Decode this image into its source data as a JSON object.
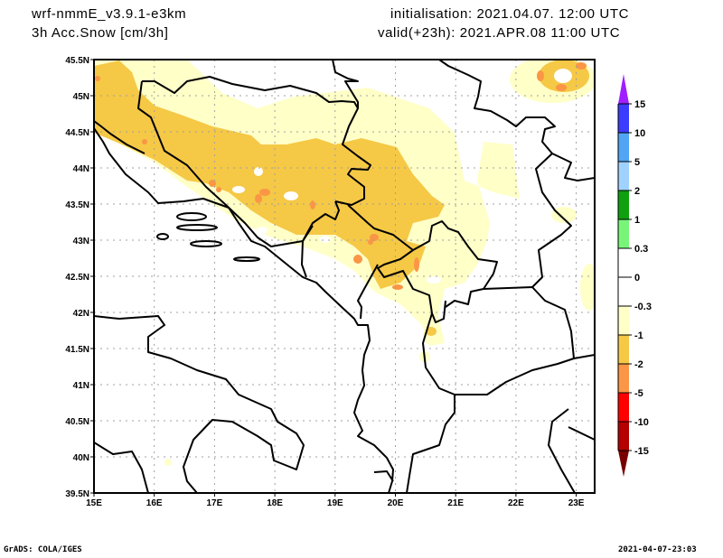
{
  "header": {
    "model": "wrf-nmmE_v3.9.1-e3km",
    "field": "3h Acc.Snow [cm/3h]",
    "init": "initialisation: 2021.04.07.  12:00 UTC",
    "valid": "valid(+23h): 2021.APR.08 11:00 UTC"
  },
  "map": {
    "lon_labels": [
      "15E",
      "16E",
      "17E",
      "18E",
      "19E",
      "20E",
      "21E",
      "22E",
      "23E"
    ],
    "lat_labels": [
      "45.5N",
      "45N",
      "44.5N",
      "44N",
      "43.5N",
      "43N",
      "42.5N",
      "42N",
      "41.5N",
      "41N",
      "40.5N",
      "40N",
      "39.5N"
    ],
    "lon_range": [
      15,
      23.3
    ],
    "lat_range": [
      39.5,
      45.5
    ]
  },
  "colorbar": {
    "labels": [
      "15",
      "10",
      "5",
      "2",
      "1",
      "0.3",
      "0",
      "-0.3",
      "-1",
      "-2",
      "-5",
      "-10",
      "-15"
    ],
    "colors": [
      "#3c3cff",
      "#50a5f5",
      "#a0d2ff",
      "#0fa00f",
      "#78f578",
      "#ffffff",
      "#ffffff",
      "#ffffc8",
      "#f5c846",
      "#fa9646",
      "#ff0000",
      "#b40000"
    ],
    "top_color": "#a01eff",
    "bottom_color": "#780000"
  },
  "footer": {
    "left": "GrADS: COLA/IGES",
    "right": "2021-04-07-23:03"
  }
}
